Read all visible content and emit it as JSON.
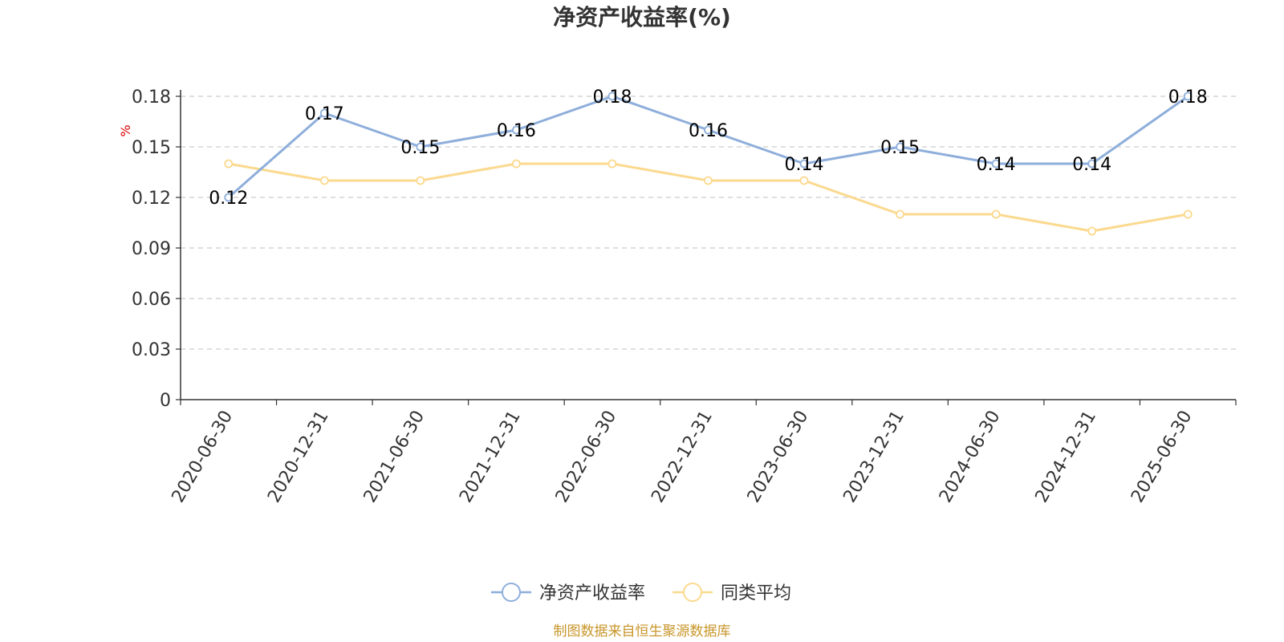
{
  "chart_data": {
    "type": "line",
    "title": "净资产收益率(%)",
    "ylabel": "%",
    "ylim": [
      0,
      0.18
    ],
    "yticks": [
      "0",
      "0.03",
      "0.06",
      "0.09",
      "0.12",
      "0.15",
      "0.18"
    ],
    "grid": true,
    "legend_position": "bottom",
    "categories": [
      "2020-06-30",
      "2020-12-31",
      "2021-06-30",
      "2021-12-31",
      "2022-06-30",
      "2022-12-31",
      "2023-06-30",
      "2023-12-31",
      "2024-06-30",
      "2024-12-31",
      "2025-06-30"
    ],
    "series": [
      {
        "name": "净资产收益率",
        "color": "#8eaedb",
        "values": [
          0.12,
          0.17,
          0.15,
          0.16,
          0.18,
          0.16,
          0.14,
          0.15,
          0.14,
          0.14,
          0.18
        ],
        "data_labels": [
          "0.12",
          "0.17",
          "0.15",
          "0.16",
          "0.18",
          "0.16",
          "0.14",
          "0.15",
          "0.14",
          "0.14",
          "0.18"
        ]
      },
      {
        "name": "同类平均",
        "color": "#fbd98f",
        "values": [
          0.14,
          0.13,
          0.13,
          0.14,
          0.14,
          0.13,
          0.13,
          0.11,
          0.11,
          0.1,
          0.11
        ]
      }
    ],
    "source": "制图数据来自恒生聚源数据库"
  }
}
